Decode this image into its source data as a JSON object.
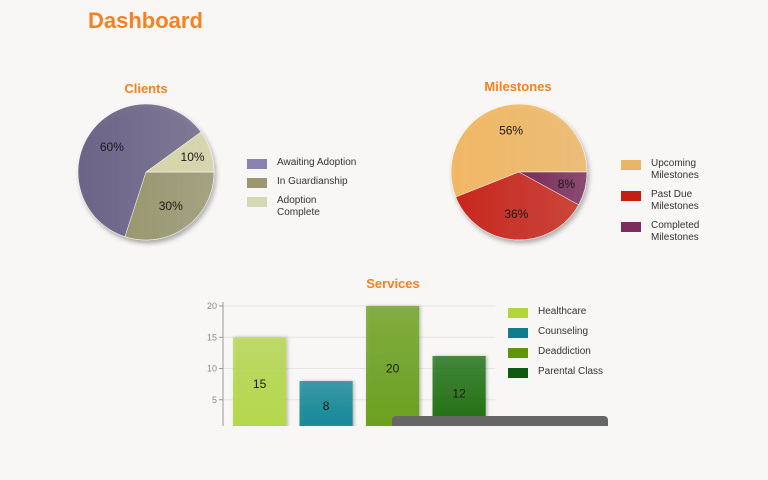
{
  "page": {
    "title": "Dashboard"
  },
  "chart_data": [
    {
      "type": "pie",
      "title": "Clients",
      "slices": [
        {
          "label": "Awaiting Adoption",
          "value": 60,
          "display": "60%",
          "color": "#6c6488"
        },
        {
          "label": "In Guardianship",
          "value": 30,
          "display": "30%",
          "color": "#9a9870"
        },
        {
          "label": "Adoption Complete",
          "value": 10,
          "display": "10%",
          "color": "#d7d6aa"
        }
      ],
      "legend": [
        {
          "label": "Awaiting Adoption",
          "color": "#8a82b0"
        },
        {
          "label": "In Guardianship",
          "color": "#9a9870"
        },
        {
          "label": "Adoption Complete",
          "color": "#d7d8b4"
        }
      ],
      "legend_position": "right"
    },
    {
      "type": "pie",
      "title": "Milestones",
      "slices": [
        {
          "label": "Upcoming Milestones",
          "value": 56,
          "display": "56%",
          "color": "#f1b865"
        },
        {
          "label": "Past Due Milestones",
          "value": 36,
          "display": "36%",
          "color": "#c8271c"
        },
        {
          "label": "Completed Milestones",
          "value": 8,
          "display": "8%",
          "color": "#7a2d5c"
        }
      ],
      "legend": [
        {
          "label": "Upcoming Milestones",
          "color": "#eab566"
        },
        {
          "label": "Past Due Milestones",
          "color": "#c51f12"
        },
        {
          "label": "Completed Milestones",
          "color": "#7b2e5e"
        }
      ],
      "legend_position": "right"
    },
    {
      "type": "bar",
      "title": "Services",
      "categories": [
        "Healthcare",
        "Counseling",
        "Deaddiction",
        "Parental Class"
      ],
      "values": [
        15,
        8,
        20,
        12
      ],
      "colors": [
        "#b5d84a",
        "#138796",
        "#6aa01c",
        "#1c6f12"
      ],
      "y_ticks": [
        "5",
        "10",
        "15",
        "20"
      ],
      "ylim": [
        0,
        20
      ],
      "grid": true,
      "legend": [
        {
          "label": "Healthcare",
          "color": "#b3d53c"
        },
        {
          "label": "Counseling",
          "color": "#0f7d8c"
        },
        {
          "label": "Deaddiction",
          "color": "#5f9410"
        },
        {
          "label": "Parental Class",
          "color": "#0f5a12"
        }
      ],
      "legend_position": "right"
    }
  ]
}
